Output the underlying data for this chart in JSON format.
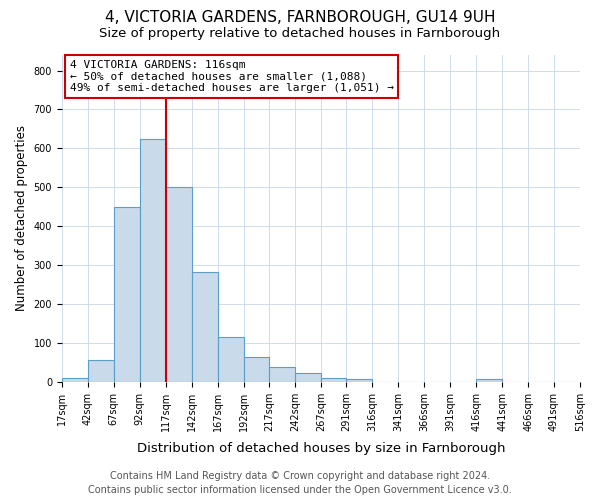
{
  "title": "4, VICTORIA GARDENS, FARNBOROUGH, GU14 9UH",
  "subtitle": "Size of property relative to detached houses in Farnborough",
  "xlabel": "Distribution of detached houses by size in Farnborough",
  "ylabel": "Number of detached properties",
  "footer_line1": "Contains HM Land Registry data © Crown copyright and database right 2024.",
  "footer_line2": "Contains public sector information licensed under the Open Government Licence v3.0.",
  "bin_edges": [
    17,
    42,
    67,
    92,
    117,
    142,
    167,
    192,
    217,
    242,
    267,
    291,
    316,
    341,
    366,
    391,
    416,
    441,
    466,
    491,
    516
  ],
  "bin_heights": [
    11,
    57,
    450,
    625,
    500,
    281,
    115,
    63,
    37,
    22,
    10,
    8,
    0,
    0,
    0,
    0,
    7,
    0,
    0,
    0
  ],
  "bar_color": "#c9daea",
  "bar_edge_color": "#5a9ec9",
  "vline_x": 117,
  "vline_color": "#cc0000",
  "annotation_text": "4 VICTORIA GARDENS: 116sqm\n← 50% of detached houses are smaller (1,088)\n49% of semi-detached houses are larger (1,051) →",
  "annotation_box_color": "#ffffff",
  "annotation_box_edge": "#cc0000",
  "ylim": [
    0,
    840
  ],
  "xlim": [
    17,
    516
  ],
  "background_color": "#ffffff",
  "grid_color": "#c8d8e8",
  "title_fontsize": 11,
  "subtitle_fontsize": 9.5,
  "xlabel_fontsize": 9.5,
  "ylabel_fontsize": 8.5,
  "tick_fontsize": 7,
  "annotation_fontsize": 8,
  "footer_fontsize": 7
}
